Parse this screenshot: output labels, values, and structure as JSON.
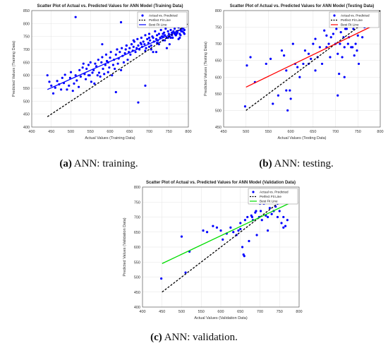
{
  "chart_data": [
    {
      "type": "scatter",
      "title": "Scatter Plot of Actual vs. Predicted Values for ANN Model (Training Data)",
      "xlabel": "Actual Values (Training Data)",
      "ylabel": "Predicted Values (Training Data)",
      "xlim": [
        400,
        800
      ],
      "ylim": [
        400,
        850
      ],
      "xticks": [
        400,
        450,
        500,
        550,
        600,
        650,
        700,
        750,
        800
      ],
      "yticks": [
        400,
        450,
        500,
        550,
        600,
        650,
        700,
        750,
        800,
        850
      ],
      "grid": true,
      "legend_position": "top-right",
      "series": [
        {
          "name": "Actual vs. Predicted",
          "kind": "points",
          "color": "#0000ff",
          "x": [
            440,
            445,
            450,
            455,
            460,
            465,
            470,
            475,
            478,
            482,
            485,
            490,
            495,
            498,
            500,
            505,
            508,
            512,
            515,
            520,
            522,
            525,
            530,
            532,
            535,
            538,
            540,
            545,
            548,
            550,
            552,
            555,
            558,
            560,
            562,
            565,
            568,
            570,
            572,
            575,
            578,
            580,
            582,
            585,
            588,
            590,
            592,
            595,
            598,
            600,
            602,
            605,
            608,
            610,
            612,
            615,
            618,
            620,
            622,
            625,
            628,
            630,
            632,
            635,
            638,
            640,
            642,
            645,
            648,
            650,
            652,
            655,
            658,
            660,
            662,
            665,
            668,
            670,
            672,
            675,
            678,
            680,
            682,
            685,
            688,
            690,
            692,
            695,
            698,
            700,
            702,
            705,
            708,
            710,
            712,
            715,
            718,
            720,
            722,
            725,
            728,
            730,
            732,
            735,
            738,
            740,
            742,
            745,
            748,
            750,
            752,
            755,
            758,
            760,
            762,
            765,
            768,
            770,
            772,
            775,
            778,
            780,
            782,
            785,
            788,
            790,
            512,
            628,
            615,
            545,
            672,
            690,
            705,
            718,
            735,
            752,
            768,
            778,
            642,
            660,
            580,
            595,
            700,
            725,
            745,
            760,
            770,
            785,
            655,
            690,
            710,
            720,
            740,
            755,
            765,
            775,
            790,
            680,
            700,
            722,
            735,
            748,
            758,
            768,
            780
          ],
          "y": [
            600,
            575,
            560,
            530,
            552,
            578,
            565,
            545,
            590,
            570,
            602,
            545,
            560,
            590,
            612,
            540,
            568,
            600,
            580,
            555,
            620,
            595,
            630,
            645,
            605,
            585,
            625,
            640,
            600,
            650,
            575,
            610,
            620,
            568,
            645,
            635,
            600,
            660,
            610,
            595,
            650,
            670,
            625,
            605,
            640,
            680,
            655,
            612,
            630,
            668,
            690,
            600,
            640,
            660,
            625,
            680,
            700,
            645,
            665,
            690,
            620,
            705,
            675,
            650,
            685,
            700,
            715,
            660,
            690,
            705,
            680,
            720,
            695,
            710,
            730,
            690,
            705,
            740,
            715,
            700,
            725,
            745,
            710,
            730,
            720,
            755,
            705,
            740,
            725,
            760,
            735,
            715,
            750,
            745,
            730,
            770,
            740,
            755,
            725,
            760,
            745,
            775,
            750,
            735,
            765,
            755,
            780,
            745,
            770,
            760,
            750,
            775,
            765,
            745,
            770,
            780,
            755,
            770,
            765,
            785,
            760,
            775,
            770,
            780,
            765,
            775,
            825,
            805,
            535,
            600,
            495,
            560,
            700,
            690,
            750,
            720,
            755,
            745,
            715,
            735,
            720,
            650,
            710,
            720,
            705,
            765,
            760,
            770,
            720,
            695,
            690,
            725,
            735,
            745,
            760,
            740,
            760,
            720,
            745,
            735,
            760,
            745,
            755,
            760,
            755
          ]
        },
        {
          "name": "Perfect Fit Line",
          "kind": "dashed-line",
          "color": "#000000",
          "x": [
            440,
            800
          ],
          "y": [
            440,
            800
          ]
        },
        {
          "name": "Best Fit Line",
          "kind": "line",
          "color": "#0000ff",
          "x": [
            440,
            790
          ],
          "y": [
            545,
            782
          ]
        }
      ]
    },
    {
      "type": "scatter",
      "title": "Scatter Plot of Actual vs. Predicted Values for ANN Model (Testing Data)",
      "xlabel": "Actual Values (Testing Data)",
      "ylabel": "Predicted Values (Testing Data)",
      "xlim": [
        450,
        800
      ],
      "ylim": [
        450,
        800
      ],
      "xticks": [
        450,
        500,
        550,
        600,
        650,
        700,
        750,
        800
      ],
      "yticks": [
        450,
        500,
        550,
        600,
        650,
        700,
        750,
        800
      ],
      "grid": true,
      "legend_position": "top-right",
      "series": [
        {
          "name": "Actual vs. Predicted",
          "kind": "points",
          "color": "#0000ff",
          "x": [
            498,
            502,
            510,
            520,
            545,
            555,
            560,
            572,
            580,
            585,
            590,
            593,
            598,
            605,
            610,
            615,
            620,
            628,
            632,
            640,
            645,
            650,
            655,
            660,
            665,
            670,
            675,
            680,
            685,
            688,
            690,
            695,
            700,
            702,
            705,
            708,
            710,
            712,
            715,
            718,
            720,
            722,
            725,
            728,
            730,
            735,
            740,
            742,
            745,
            748,
            750,
            752,
            755,
            760,
            765,
            705,
            655,
            600,
            590,
            640,
            680,
            720,
            738
          ],
          "y": [
            512,
            635,
            660,
            585,
            640,
            655,
            520,
            545,
            680,
            665,
            620,
            500,
            560,
            700,
            640,
            630,
            600,
            640,
            680,
            670,
            655,
            700,
            715,
            660,
            690,
            640,
            740,
            690,
            700,
            660,
            720,
            730,
            700,
            745,
            670,
            610,
            700,
            735,
            660,
            720,
            690,
            745,
            745,
            700,
            720,
            690,
            745,
            665,
            700,
            680,
            725,
            640,
            755,
            720,
            750,
            545,
            620,
            535,
            560,
            640,
            725,
            600,
            690
          ]
        },
        {
          "name": "Perfect Fit Line",
          "kind": "dashed-line",
          "color": "#000000",
          "x": [
            500,
            800
          ],
          "y": [
            500,
            800
          ]
        },
        {
          "name": "Best Fit Line",
          "kind": "line",
          "color": "#ff0000",
          "x": [
            500,
            780
          ],
          "y": [
            570,
            752
          ]
        }
      ]
    },
    {
      "type": "scatter",
      "title": "Scatter Plot of Actual vs. Predicted Values for ANN Model (Validation Data)",
      "xlabel": "Actual Values (Validation Data)",
      "ylabel": "Predicted Values (Validation Data)",
      "xlim": [
        400,
        800
      ],
      "ylim": [
        400,
        800
      ],
      "xticks": [
        400,
        450,
        500,
        550,
        600,
        650,
        700,
        750,
        800
      ],
      "yticks": [
        400,
        450,
        500,
        550,
        600,
        650,
        700,
        750,
        800
      ],
      "grid": true,
      "legend_position": "top-right",
      "series": [
        {
          "name": "Actual vs. Predicted",
          "kind": "points",
          "color": "#0000ff",
          "x": [
            448,
            500,
            510,
            520,
            555,
            565,
            580,
            590,
            600,
            605,
            615,
            625,
            632,
            640,
            645,
            650,
            655,
            658,
            662,
            668,
            672,
            678,
            682,
            688,
            692,
            698,
            702,
            705,
            710,
            715,
            720,
            725,
            730,
            735,
            740,
            745,
            750,
            755,
            760,
            765,
            770,
            700,
            690,
            680,
            660,
            720,
            760,
            650,
            745
          ],
          "y": [
            495,
            635,
            515,
            585,
            655,
            650,
            670,
            665,
            655,
            625,
            645,
            665,
            650,
            640,
            655,
            680,
            600,
            575,
            690,
            700,
            620,
            705,
            690,
            715,
            640,
            700,
            720,
            690,
            745,
            705,
            700,
            730,
            710,
            720,
            735,
            700,
            720,
            680,
            700,
            670,
            690,
            745,
            720,
            700,
            570,
            655,
            665,
            660,
            745
          ]
        },
        {
          "name": "Perfect Fit Line",
          "kind": "dashed-line",
          "color": "#000000",
          "x": [
            450,
            790
          ],
          "y": [
            450,
            790
          ]
        },
        {
          "name": "Best Fit Line",
          "kind": "line",
          "color": "#00dd00",
          "x": [
            450,
            785
          ],
          "y": [
            545,
            752
          ]
        }
      ]
    }
  ],
  "captions": [
    {
      "letter": "(a)",
      "text": " ANN: training."
    },
    {
      "letter": "(b)",
      "text": " ANN: testing."
    },
    {
      "letter": "(c)",
      "text": " ANN: validation."
    }
  ]
}
